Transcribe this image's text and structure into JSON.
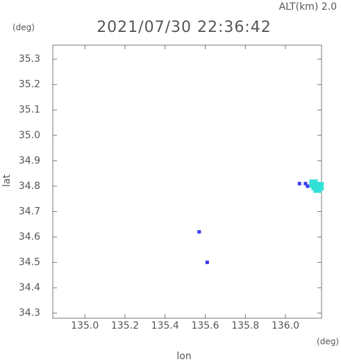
{
  "chart_data": {
    "type": "scatter",
    "title": "2021/07/30 22:36:42",
    "subtitle": "ALT(km) 2.0",
    "y_unit": "(deg)",
    "x_unit": "(deg)",
    "xlabel": "lon",
    "ylabel": "lat",
    "xlim": [
      134.84,
      136.18
    ],
    "ylim": [
      34.28,
      35.355
    ],
    "xticks": [
      {
        "value": 135,
        "label": "135.0"
      },
      135.2,
      135.4,
      135.6,
      135.8,
      {
        "value": 136,
        "label": "136.0"
      }
    ],
    "yticks": [
      34.3,
      34.4,
      34.5,
      34.6,
      34.7,
      34.8,
      34.9,
      {
        "value": 35,
        "label": "35.0"
      },
      35.1,
      35.2,
      35.3
    ],
    "series": [
      {
        "color": "#3c3cf0",
        "x": [
          135.57,
          135.61,
          136.07,
          136.1,
          136.11,
          136.13
        ],
        "values": [
          34.62,
          34.5,
          34.81,
          34.81,
          34.8,
          34.81
        ]
      },
      {
        "color": "#33e0d8",
        "x": [
          136.15,
          136.16,
          136.14,
          136.17
        ],
        "values": [
          34.8,
          34.79,
          34.81,
          34.8
        ]
      }
    ]
  }
}
